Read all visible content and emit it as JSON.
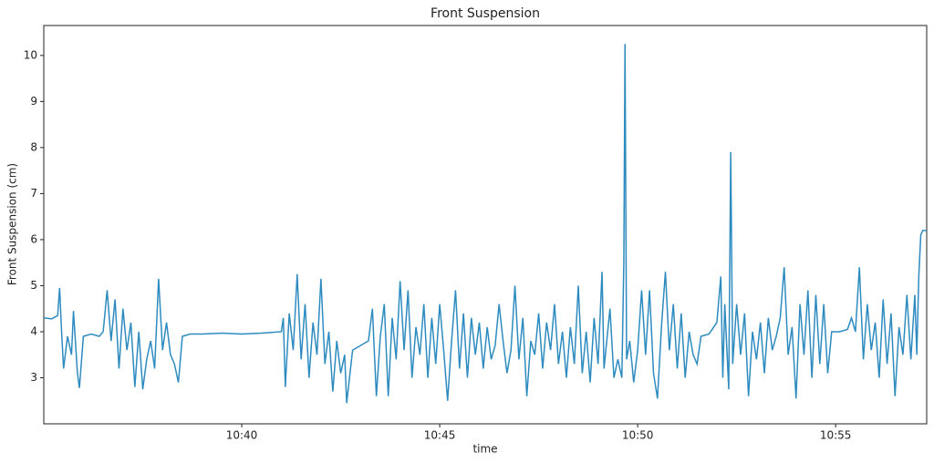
{
  "chart_data": {
    "type": "line",
    "title": "Front Suspension",
    "x_label": "time",
    "y_label": "Front Suspension (cm)",
    "color": "#2e8bc0",
    "xlim": [
      35,
      57.3
    ],
    "xticks": [
      {
        "value": 40,
        "label": "10:40"
      },
      {
        "value": 45,
        "label": "10:45"
      },
      {
        "value": 50,
        "label": "10:50"
      },
      {
        "value": 55,
        "label": "10:55"
      }
    ],
    "ylim": [
      2.0,
      10.65
    ],
    "yticks": [
      3,
      4,
      5,
      6,
      7,
      8,
      9,
      10
    ],
    "x": [
      35.0,
      35.2,
      35.35,
      35.4,
      35.45,
      35.5,
      35.6,
      35.7,
      35.75,
      35.85,
      35.9,
      36.0,
      36.2,
      36.4,
      36.5,
      36.6,
      36.7,
      36.8,
      36.9,
      37.0,
      37.1,
      37.2,
      37.3,
      37.4,
      37.5,
      37.6,
      37.7,
      37.8,
      37.9,
      38.0,
      38.1,
      38.2,
      38.3,
      38.4,
      38.5,
      38.7,
      39.0,
      39.5,
      40.0,
      40.5,
      41.0,
      41.05,
      41.1,
      41.2,
      41.3,
      41.4,
      41.5,
      41.6,
      41.7,
      41.8,
      41.9,
      42.0,
      42.1,
      42.2,
      42.3,
      42.4,
      42.5,
      42.6,
      42.65,
      42.8,
      43.0,
      43.2,
      43.3,
      43.4,
      43.5,
      43.6,
      43.7,
      43.8,
      43.9,
      44.0,
      44.1,
      44.2,
      44.3,
      44.4,
      44.5,
      44.6,
      44.7,
      44.8,
      44.9,
      45.0,
      45.1,
      45.2,
      45.3,
      45.4,
      45.5,
      45.6,
      45.7,
      45.8,
      45.9,
      46.0,
      46.1,
      46.2,
      46.3,
      46.4,
      46.5,
      46.6,
      46.7,
      46.8,
      46.9,
      47.0,
      47.1,
      47.2,
      47.3,
      47.4,
      47.5,
      47.6,
      47.7,
      47.8,
      47.9,
      48.0,
      48.1,
      48.2,
      48.3,
      48.4,
      48.5,
      48.6,
      48.7,
      48.8,
      48.9,
      49.0,
      49.1,
      49.15,
      49.3,
      49.4,
      49.5,
      49.6,
      49.65,
      49.68,
      49.72,
      49.8,
      49.9,
      50.0,
      50.1,
      50.2,
      50.3,
      50.4,
      50.5,
      50.6,
      50.7,
      50.8,
      50.9,
      51.0,
      51.1,
      51.2,
      51.3,
      51.4,
      51.5,
      51.6,
      51.8,
      52.0,
      52.1,
      52.15,
      52.2,
      52.3,
      52.35,
      52.4,
      52.5,
      52.6,
      52.7,
      52.8,
      52.9,
      53.0,
      53.1,
      53.2,
      53.3,
      53.4,
      53.5,
      53.6,
      53.7,
      53.8,
      53.9,
      54.0,
      54.1,
      54.2,
      54.3,
      54.4,
      54.5,
      54.6,
      54.7,
      54.8,
      54.9,
      55.1,
      55.3,
      55.4,
      55.5,
      55.6,
      55.7,
      55.8,
      55.9,
      56.0,
      56.1,
      56.2,
      56.3,
      56.4,
      56.5,
      56.6,
      56.7,
      56.8,
      56.9,
      57.0,
      57.05,
      57.1,
      57.15,
      57.2,
      57.3
    ],
    "values": [
      4.3,
      4.28,
      4.35,
      4.95,
      4.0,
      3.2,
      3.9,
      3.5,
      4.45,
      3.1,
      2.78,
      3.9,
      3.95,
      3.9,
      4.0,
      4.9,
      3.8,
      4.7,
      3.2,
      4.5,
      3.6,
      4.2,
      2.8,
      4.0,
      2.75,
      3.4,
      3.8,
      3.2,
      5.15,
      3.6,
      4.2,
      3.5,
      3.3,
      2.9,
      3.9,
      3.95,
      3.95,
      3.97,
      3.95,
      3.97,
      4.0,
      4.3,
      2.8,
      4.4,
      3.6,
      5.25,
      3.4,
      4.6,
      3.0,
      4.2,
      3.5,
      5.15,
      3.3,
      4.0,
      2.7,
      3.8,
      3.1,
      3.5,
      2.45,
      3.6,
      3.7,
      3.8,
      4.5,
      2.6,
      3.9,
      4.6,
      2.6,
      4.3,
      3.4,
      5.1,
      3.6,
      4.9,
      3.0,
      4.1,
      3.5,
      4.6,
      3.0,
      4.3,
      3.3,
      4.6,
      3.6,
      2.5,
      3.8,
      4.9,
      3.2,
      4.4,
      3.0,
      4.3,
      3.5,
      4.2,
      3.2,
      4.1,
      3.4,
      3.7,
      4.6,
      3.8,
      3.1,
      3.6,
      5.0,
      3.4,
      4.3,
      2.6,
      3.8,
      3.5,
      4.4,
      3.2,
      4.2,
      3.6,
      4.6,
      3.3,
      4.0,
      3.0,
      4.1,
      3.3,
      5.0,
      3.1,
      4.0,
      2.9,
      4.3,
      3.3,
      5.3,
      3.2,
      4.5,
      3.0,
      3.4,
      3.0,
      5.5,
      10.25,
      3.4,
      3.8,
      2.9,
      3.6,
      4.9,
      3.5,
      4.9,
      3.1,
      2.55,
      4.1,
      5.3,
      3.6,
      4.6,
      3.2,
      4.4,
      3.0,
      4.0,
      3.5,
      3.3,
      3.9,
      3.95,
      4.2,
      5.2,
      3.0,
      4.6,
      2.75,
      7.9,
      3.3,
      4.6,
      3.5,
      4.4,
      2.6,
      4.0,
      3.4,
      4.2,
      3.1,
      4.3,
      3.6,
      3.9,
      4.3,
      5.4,
      3.5,
      4.1,
      2.55,
      4.6,
      3.5,
      4.9,
      3.0,
      4.8,
      3.3,
      4.6,
      3.1,
      4.0,
      4.0,
      4.05,
      4.3,
      4.0,
      5.4,
      3.4,
      4.6,
      3.6,
      4.2,
      3.0,
      4.7,
      3.3,
      4.4,
      2.6,
      4.1,
      3.5,
      4.8,
      3.4,
      4.8,
      3.5,
      5.2,
      6.1,
      6.2,
      6.2
    ]
  }
}
